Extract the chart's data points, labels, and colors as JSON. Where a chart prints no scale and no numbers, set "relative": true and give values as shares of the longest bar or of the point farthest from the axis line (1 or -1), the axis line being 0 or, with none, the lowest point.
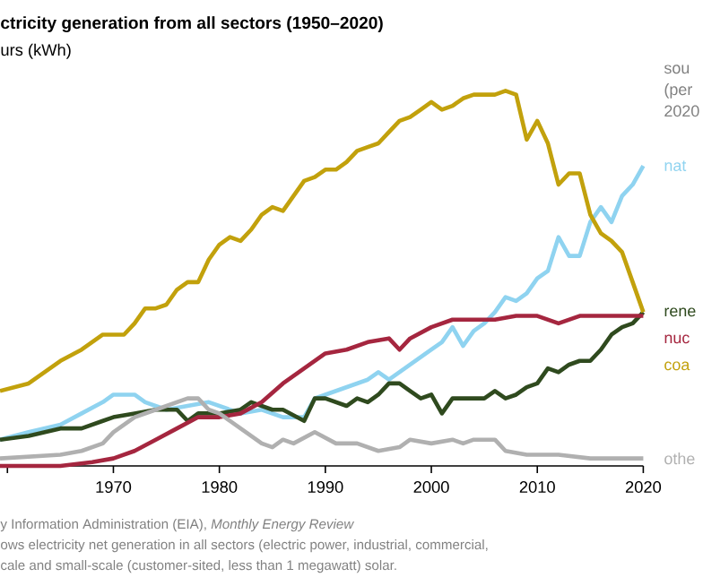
{
  "chart_data": {
    "type": "line",
    "relative": true,
    "title": "ctricity generation from all sectors (1950–2020)",
    "subtitle": "urs (kWh)",
    "annotations": [
      "sou",
      "(per",
      "2020",
      "y Information Administration (EIA), *Monthly Energy Review*",
      "ows electricity net generation in all sectors (electric power, industrial, commercial,",
      "cale and small-scale (customer-sited, less than 1 megawatt) solar."
    ],
    "xlim": [
      1959.3,
      2020
    ],
    "xticks": [
      {
        "value": 1960,
        "label": null
      },
      1970,
      1980,
      1990,
      2000,
      2010,
      2020
    ],
    "series": [
      {
        "name": "nat",
        "color": "#8fd3f0",
        "x": [
          1959.3,
          1962,
          1965,
          1967,
          1969,
          1970,
          1972,
          1973,
          1975,
          1977,
          1979,
          1980,
          1982,
          1984,
          1986,
          1988,
          1989,
          1990,
          1992,
          1994,
          1995,
          1996,
          1998,
          2000,
          2001,
          2002,
          2003,
          2004,
          2005,
          2006,
          2007,
          2008,
          2009,
          2010,
          2011,
          2012,
          2013,
          2014,
          2015,
          2016,
          2017,
          2018,
          2019,
          2020
        ],
        "values": [
          0.07,
          0.09,
          0.11,
          0.14,
          0.17,
          0.19,
          0.19,
          0.17,
          0.15,
          0.16,
          0.17,
          0.16,
          0.14,
          0.15,
          0.13,
          0.13,
          0.18,
          0.19,
          0.21,
          0.23,
          0.25,
          0.23,
          0.27,
          0.31,
          0.33,
          0.37,
          0.32,
          0.36,
          0.38,
          0.41,
          0.45,
          0.44,
          0.46,
          0.5,
          0.52,
          0.61,
          0.56,
          0.56,
          0.65,
          0.69,
          0.65,
          0.72,
          0.75,
          0.8
        ]
      },
      {
        "name": "rene",
        "color": "#2f4a1e",
        "x": [
          1959.3,
          1962,
          1965,
          1967,
          1969,
          1970,
          1972,
          1974,
          1976,
          1977,
          1978,
          1979,
          1980,
          1982,
          1983,
          1985,
          1986,
          1988,
          1989,
          1990,
          1991,
          1992,
          1993,
          1994,
          1995,
          1996,
          1997,
          1998,
          1999,
          2000,
          2001,
          2002,
          2003,
          2004,
          2005,
          2006,
          2007,
          2008,
          2009,
          2010,
          2011,
          2012,
          2013,
          2014,
          2015,
          2016,
          2017,
          2018,
          2019,
          2020
        ],
        "values": [
          0.07,
          0.08,
          0.1,
          0.1,
          0.12,
          0.13,
          0.14,
          0.15,
          0.15,
          0.12,
          0.14,
          0.14,
          0.14,
          0.15,
          0.17,
          0.15,
          0.15,
          0.12,
          0.18,
          0.18,
          0.17,
          0.16,
          0.18,
          0.17,
          0.19,
          0.22,
          0.22,
          0.2,
          0.18,
          0.19,
          0.14,
          0.18,
          0.18,
          0.18,
          0.18,
          0.2,
          0.18,
          0.19,
          0.21,
          0.22,
          0.26,
          0.25,
          0.27,
          0.28,
          0.28,
          0.31,
          0.35,
          0.37,
          0.38,
          0.41
        ]
      },
      {
        "name": "nuc",
        "color": "#a5263f",
        "x": [
          1959.3,
          1965,
          1968,
          1970,
          1972,
          1974,
          1976,
          1978,
          1980,
          1982,
          1984,
          1986,
          1988,
          1990,
          1992,
          1994,
          1996,
          1997,
          1998,
          2000,
          2002,
          2004,
          2006,
          2008,
          2010,
          2012,
          2014,
          2016,
          2018,
          2020
        ],
        "values": [
          0,
          0,
          0.01,
          0.02,
          0.04,
          0.07,
          0.1,
          0.13,
          0.13,
          0.14,
          0.17,
          0.22,
          0.26,
          0.3,
          0.31,
          0.33,
          0.34,
          0.31,
          0.34,
          0.37,
          0.39,
          0.39,
          0.39,
          0.4,
          0.4,
          0.38,
          0.4,
          0.4,
          0.4,
          0.4
        ]
      },
      {
        "name": "coa",
        "color": "#c2a10c",
        "x": [
          1959.3,
          1962,
          1965,
          1967,
          1969,
          1970,
          1971,
          1972,
          1973,
          1974,
          1975,
          1976,
          1977,
          1978,
          1979,
          1980,
          1981,
          1982,
          1983,
          1984,
          1985,
          1986,
          1987,
          1988,
          1989,
          1990,
          1991,
          1992,
          1993,
          1994,
          1995,
          1996,
          1997,
          1998,
          1999,
          2000,
          2001,
          2002,
          2003,
          2004,
          2005,
          2006,
          2007,
          2008,
          2009,
          2010,
          2011,
          2012,
          2013,
          2014,
          2015,
          2016,
          2017,
          2018,
          2019,
          2020
        ],
        "values": [
          0.2,
          0.22,
          0.28,
          0.31,
          0.35,
          0.35,
          0.35,
          0.38,
          0.42,
          0.42,
          0.43,
          0.47,
          0.49,
          0.49,
          0.55,
          0.59,
          0.61,
          0.6,
          0.63,
          0.67,
          0.69,
          0.68,
          0.72,
          0.76,
          0.77,
          0.79,
          0.79,
          0.81,
          0.84,
          0.85,
          0.86,
          0.89,
          0.92,
          0.93,
          0.95,
          0.97,
          0.95,
          0.96,
          0.98,
          0.99,
          0.99,
          0.99,
          1.0,
          0.99,
          0.87,
          0.92,
          0.86,
          0.75,
          0.78,
          0.78,
          0.67,
          0.62,
          0.6,
          0.57,
          0.49,
          0.41
        ]
      },
      {
        "name": "othe",
        "color": "#b0b0b0",
        "x": [
          1959.3,
          1965,
          1967,
          1969,
          1970,
          1972,
          1974,
          1976,
          1977,
          1978,
          1979,
          1980,
          1982,
          1984,
          1985,
          1986,
          1987,
          1989,
          1991,
          1993,
          1995,
          1997,
          1998,
          2000,
          2002,
          2003,
          2004,
          2006,
          2007,
          2009,
          2012,
          2015,
          2018,
          2020
        ],
        "values": [
          0.02,
          0.03,
          0.04,
          0.06,
          0.09,
          0.13,
          0.15,
          0.17,
          0.18,
          0.18,
          0.15,
          0.14,
          0.1,
          0.06,
          0.05,
          0.07,
          0.06,
          0.09,
          0.06,
          0.06,
          0.04,
          0.05,
          0.07,
          0.06,
          0.07,
          0.06,
          0.07,
          0.07,
          0.04,
          0.03,
          0.03,
          0.02,
          0.02,
          0.02
        ]
      }
    ]
  }
}
